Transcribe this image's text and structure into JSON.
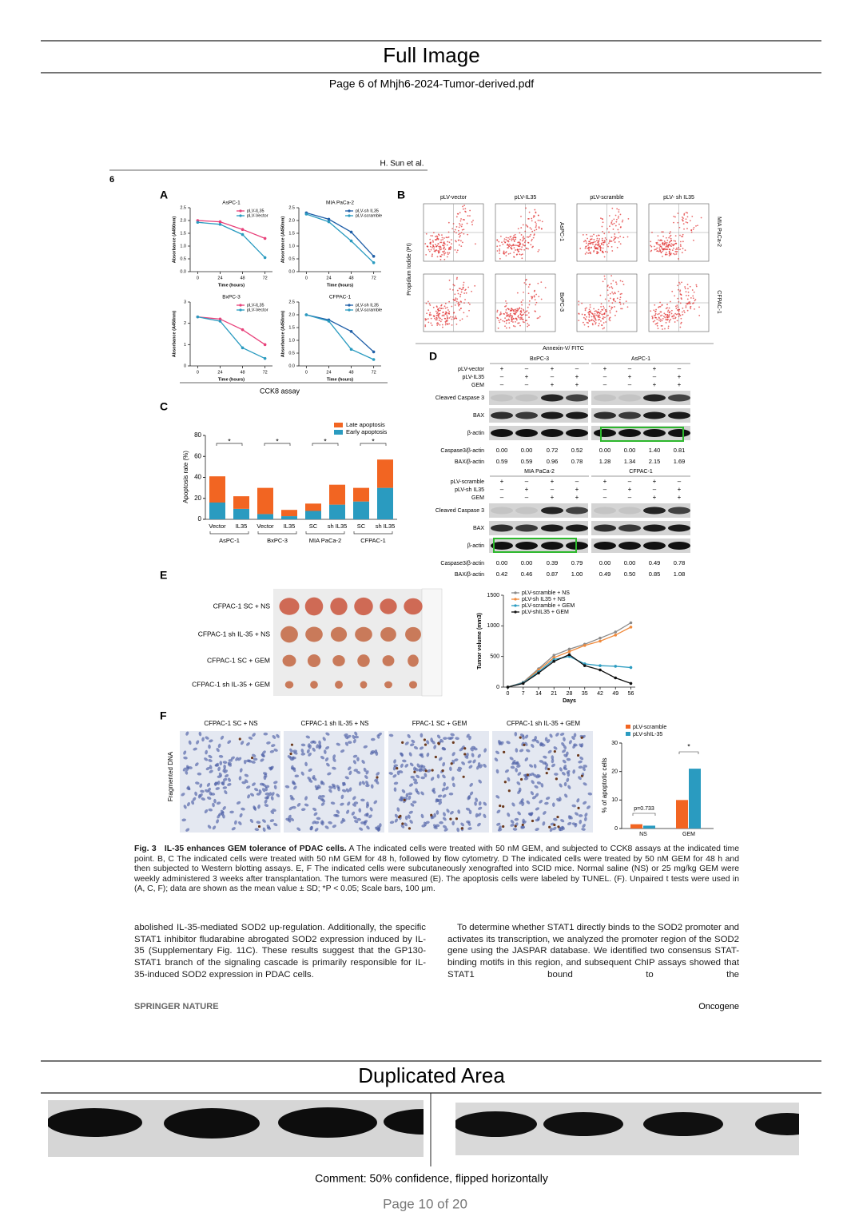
{
  "header": {
    "title": "Full Image",
    "subtitle": "Page 6 of Mhjh6-2024-Tumor-derived.pdf"
  },
  "paper": {
    "running_head": "H. Sun et al.",
    "page_number": "6",
    "figure": {
      "panel_letters": [
        "A",
        "B",
        "C",
        "D",
        "E",
        "F"
      ],
      "A": {
        "caption": "CCK8 assay",
        "charts": [
          {
            "title": "AsPC-1",
            "x": [
              0,
              24,
              48,
              72
            ],
            "xlim": [
              -8,
              80
            ],
            "xticks": [
              0,
              24,
              48,
              72
            ],
            "ylim": [
              0,
              2.5
            ],
            "yticks": [
              {
                "value": 0,
                "label": "0.0"
              },
              {
                "value": 0.5,
                "label": "0.5"
              },
              {
                "value": 1,
                "label": "1.0"
              },
              {
                "value": 1.5,
                "label": "1.5"
              },
              {
                "value": 2,
                "label": "2.0"
              },
              {
                "value": 2.5,
                "label": "2.5"
              }
            ],
            "xlabel": "Time (hours)",
            "ylabel": "Absorbance (A450nm)",
            "series": [
              {
                "name": "pLV-IL35",
                "color": "#e8417a",
                "values": [
                  2.0,
                  1.95,
                  1.65,
                  1.3
                ]
              },
              {
                "name": "pLV-Vector",
                "color": "#2a9bc0",
                "values": [
                  1.93,
                  1.85,
                  1.45,
                  0.55
                ]
              }
            ]
          },
          {
            "title": "MIA PaCa-2",
            "x": [
              0,
              24,
              48,
              72
            ],
            "xlim": [
              -8,
              80
            ],
            "xticks": [
              0,
              24,
              48,
              72
            ],
            "ylim": [
              0,
              2.5
            ],
            "yticks": [
              {
                "value": 0,
                "label": "0.0"
              },
              {
                "value": 0.5,
                "label": "0.5"
              },
              {
                "value": 1,
                "label": "1.0"
              },
              {
                "value": 1.5,
                "label": "1.5"
              },
              {
                "value": 2,
                "label": "2.0"
              },
              {
                "value": 2.5,
                "label": "2.5"
              }
            ],
            "xlabel": "Time (hours)",
            "ylabel": "Absorbance (A450nm)",
            "series": [
              {
                "name": "pLV-sh IL35",
                "color": "#1f5fa8",
                "values": [
                  2.3,
                  2.05,
                  1.55,
                  0.6
                ]
              },
              {
                "name": "pLV-scramble",
                "color": "#2a9bc0",
                "values": [
                  2.25,
                  1.95,
                  1.2,
                  0.35
                ]
              }
            ]
          },
          {
            "title": "BxPC-3",
            "x": [
              0,
              24,
              48,
              72
            ],
            "xlim": [
              -8,
              80
            ],
            "xticks": [
              0,
              24,
              48,
              72
            ],
            "ylim": [
              0,
              3
            ],
            "yticks": [
              0,
              1,
              2,
              3
            ],
            "xlabel": "Time (hours)",
            "ylabel": "Absorbance (A450nm)",
            "series": [
              {
                "name": "pLV-IL35",
                "color": "#e8417a",
                "values": [
                  2.3,
                  2.2,
                  1.7,
                  1.0
                ]
              },
              {
                "name": "pLV-Vector",
                "color": "#2a9bc0",
                "values": [
                  2.3,
                  2.1,
                  0.85,
                  0.35
                ]
              }
            ]
          },
          {
            "title": "CFPAC-1",
            "x": [
              0,
              24,
              48,
              72
            ],
            "xlim": [
              -8,
              80
            ],
            "xticks": [
              0,
              24,
              48,
              72
            ],
            "ylim": [
              0,
              2.5
            ],
            "yticks": [
              {
                "value": 0,
                "label": "0.0"
              },
              {
                "value": 0.5,
                "label": "0.5"
              },
              {
                "value": 1,
                "label": "1.0"
              },
              {
                "value": 1.5,
                "label": "1.5"
              },
              {
                "value": 2,
                "label": "2.0"
              },
              {
                "value": 2.5,
                "label": "2.5"
              }
            ],
            "xlabel": "Time (hours)",
            "ylabel": "Absorbance (A450nm)",
            "series": [
              {
                "name": "pLV-sh IL35",
                "color": "#1f5fa8",
                "values": [
                  2.0,
                  1.8,
                  1.35,
                  0.55
                ]
              },
              {
                "name": "pLV-scramble",
                "color": "#2a9bc0",
                "values": [
                  2.0,
                  1.75,
                  0.65,
                  0.25
                ]
              }
            ]
          }
        ]
      },
      "B": {
        "columns": [
          "pLV-vector",
          "pLV-IL35",
          "pLV-scramble",
          "pLV- sh IL35"
        ],
        "rows": [
          "AsPC-1",
          "BxPC-3",
          "MIA PaCa-2",
          "CFPAC-1"
        ],
        "ylabel": "Propidium Iodide (PI)",
        "xlabel": "Annexin-V/ FITC"
      },
      "C": {
        "ylabel": "Apoptosis rate (%)",
        "ylim": [
          0,
          80
        ],
        "yticks": [
          0,
          20,
          40,
          60,
          80
        ],
        "categories": [
          "Vector",
          "IL35",
          "Vector",
          "IL35",
          "SC",
          "sh IL35",
          "SC",
          "sh IL35"
        ],
        "groups": [
          "AsPC-1",
          "BxPC-3",
          "MIA PaCa-2",
          "CFPAC-1"
        ],
        "significance": [
          "*",
          "*",
          "*",
          "*"
        ],
        "series": [
          {
            "name": "Late apoptosis",
            "color": "#f26522",
            "values": [
              25,
              12,
              25,
              6,
              7,
              19,
              13,
              27
            ]
          },
          {
            "name": "Early apoptosis",
            "color": "#2a9bc0",
            "values": [
              16,
              10,
              5,
              3,
              8,
              14,
              17,
              30
            ]
          }
        ]
      },
      "D": {
        "blocks": [
          {
            "cells": [
              "BxPC-3",
              "AsPC-1"
            ],
            "conditions": [
              {
                "name": "pLV-vector",
                "signs": [
                  "+",
                  "–",
                  "+",
                  "–",
                  "+",
                  "–",
                  "+",
                  "–"
                ]
              },
              {
                "name": "pLV-IL35",
                "signs": [
                  "–",
                  "+",
                  "–",
                  "+",
                  "–",
                  "+",
                  "–",
                  "+"
                ]
              },
              {
                "name": "GEM",
                "signs": [
                  "–",
                  "–",
                  "+",
                  "+",
                  "–",
                  "–",
                  "+",
                  "+"
                ]
              }
            ],
            "bands": [
              "Cleaved Caspase 3",
              "BAX",
              "β-actin"
            ],
            "quant": [
              {
                "name": "Caspase3/β-actin",
                "values": [
                  "0.00",
                  "0.00",
                  "0.72",
                  "0.52",
                  "0.00",
                  "0.00",
                  "1.40",
                  "0.81"
                ]
              },
              {
                "name": "BAX/β-actin",
                "values": [
                  "0.59",
                  "0.59",
                  "0.96",
                  "0.78",
                  "1.28",
                  "1.34",
                  "2.15",
                  "1.69"
                ]
              }
            ]
          },
          {
            "cells": [
              "MIA PaCa-2",
              "CFPAC-1"
            ],
            "conditions": [
              {
                "name": "pLV-scramble",
                "signs": [
                  "+",
                  "–",
                  "+",
                  "–",
                  "+",
                  "–",
                  "+",
                  "–"
                ]
              },
              {
                "name": "pLV-sh IL35",
                "signs": [
                  "–",
                  "+",
                  "–",
                  "+",
                  "–",
                  "+",
                  "–",
                  "+"
                ]
              },
              {
                "name": "GEM",
                "signs": [
                  "–",
                  "–",
                  "+",
                  "+",
                  "–",
                  "–",
                  "+",
                  "+"
                ]
              }
            ],
            "bands": [
              "Cleaved Caspase 3",
              "BAX",
              "β-actin"
            ],
            "quant": [
              {
                "name": "Caspase3/β-actin",
                "values": [
                  "0.00",
                  "0.00",
                  "0.39",
                  "0.79",
                  "0.00",
                  "0.00",
                  "0.49",
                  "0.78"
                ]
              },
              {
                "name": "BAX/β-actin",
                "values": [
                  "0.42",
                  "0.46",
                  "0.87",
                  "1.00",
                  "0.49",
                  "0.50",
                  "0.85",
                  "1.08"
                ]
              }
            ]
          }
        ]
      },
      "E": {
        "groups": [
          "CFPAC-1 SC + NS",
          "CFPAC-1 sh IL-35 + NS",
          "CFPAC-1 SC + GEM",
          "CFPAC-1 sh IL-35 + GEM"
        ],
        "chart": {
          "x": [
            0,
            7,
            14,
            21,
            28,
            35,
            42,
            49,
            56
          ],
          "xlim": [
            -2,
            58
          ],
          "xticks": [
            0,
            7,
            14,
            21,
            28,
            35,
            42,
            49,
            56
          ],
          "ylim": [
            0,
            1500
          ],
          "yticks": [
            0,
            500,
            1000,
            1500
          ],
          "xlabel": "Days",
          "ylabel": "Tumor volume (mm3)",
          "series": [
            {
              "name": "pLV-scramble + NS",
              "color": "#8a8a8a",
              "values": [
                0,
                80,
                300,
                520,
                620,
                700,
                800,
                900,
                1050
              ]
            },
            {
              "name": "pLV-sh IL35 + NS",
              "color": "#f08a3c",
              "values": [
                0,
                70,
                280,
                480,
                580,
                680,
                750,
                850,
                980
              ]
            },
            {
              "name": "pLV-scramble + GEM",
              "color": "#2a9bc0",
              "values": [
                0,
                70,
                250,
                450,
                500,
                380,
                350,
                340,
                320
              ]
            },
            {
              "name": "pLV-shIL35 + GEM",
              "color": "#111111",
              "values": [
                0,
                60,
                230,
                420,
                530,
                350,
                280,
                150,
                60
              ]
            }
          ]
        }
      },
      "F": {
        "ylabel_left": "Fragmented DNA",
        "images": [
          "CFPAC-1 SC + NS",
          "CFPAC-1 sh IL-35 + NS",
          "FPAC-1 SC + GEM",
          "CFPAC-1 sh IL-35 + GEM"
        ],
        "chart": {
          "ylabel": "% of apoptotic cells",
          "ylim": [
            0,
            30
          ],
          "yticks": [
            0,
            10,
            20,
            30
          ],
          "categories": [
            "NS",
            "GEM"
          ],
          "series": [
            {
              "name": "pLV-scramble",
              "color": "#f26522",
              "values": [
                1.5,
                10
              ]
            },
            {
              "name": "pLV-shIL-35",
              "color": "#2a9bc0",
              "values": [
                1,
                21
              ]
            }
          ],
          "annotations": [
            "p=0.733",
            "*"
          ]
        }
      }
    },
    "caption": {
      "label": "Fig. 3",
      "title": "IL-35 enhances GEM tolerance of PDAC cells.",
      "text": "A The indicated cells were treated with 50 nM GEM, and subjected to CCK8 assays at the indicated time point. B, C The indicated cells were treated with 50 nM GEM for 48 h, followed by flow cytometry. D The indicated cells were treated by 50 nM GEM for 48 h and then subjected to Western blotting assays. E, F The indicated cells were subcutaneously xenografted into SCID mice. Normal saline (NS) or 25 mg/kg GEM were weekly administered 3 weeks after transplantation. The tumors were measured (E). The apoptosis cells were labeled by TUNEL. (F). Unpaired t tests were used in (A, C, F); data are shown as the mean value ± SD; *P < 0.05; Scale bars, 100 μm."
    },
    "body": [
      "abolished IL-35-mediated SOD2 up-regulation. Additionally, the specific STAT1 inhibitor fludarabine abrogated SOD2 expression induced by IL-35 (Supplementary Fig. 11C). These results suggest that the GP130-STAT1 branch of the signaling cascade is primarily responsible for IL-35-induced SOD2 expression in PDAC cells.",
      "To determine whether STAT1 directly binds to the SOD2 promoter and activates its transcription, we analyzed the promoter region of the SOD2 gene using the JASPAR database. We identified two consensus STAT-binding motifs in this region, and subsequent ChIP assays showed that STAT1 bound to the"
    ],
    "footer": {
      "publisher": "SPRINGER NATURE",
      "journal": "Oncogene"
    }
  },
  "duplicated": {
    "title": "Duplicated Area",
    "comment": "Comment: 50% confidence, flipped horizontally"
  },
  "footer": {
    "page": "Page 10 of 20"
  }
}
